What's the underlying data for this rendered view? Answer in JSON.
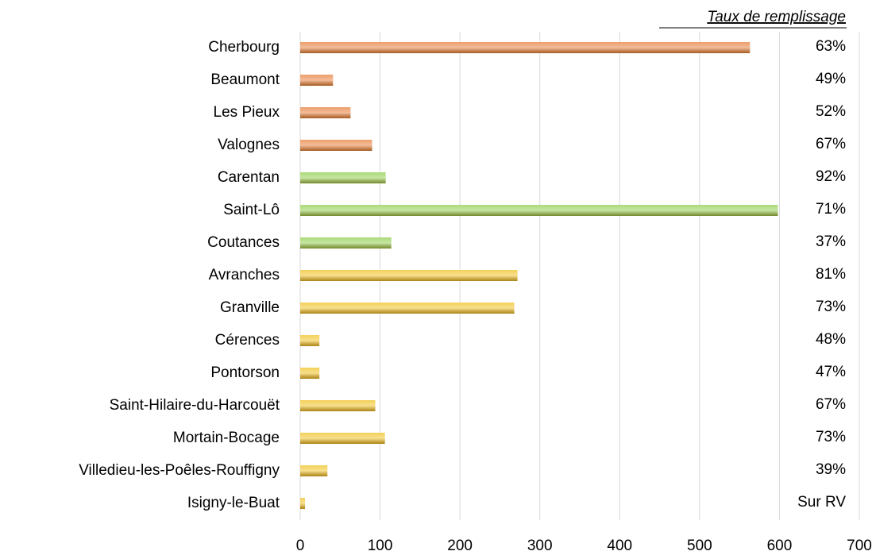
{
  "chart_data": {
    "type": "bar",
    "orientation": "horizontal",
    "categories": [
      "Cherbourg",
      "Beaumont",
      "Les Pieux",
      "Valognes",
      "Carentan",
      "Saint-Lô",
      "Coutances",
      "Avranches",
      "Granville",
      "Cérences",
      "Pontorson",
      "Saint-Hilaire-du-Harcouët",
      "Mortain-Bocage",
      "Villedieu-les-Poêles-Rouffigny",
      "Isigny-le-Buat"
    ],
    "values": [
      563,
      41,
      63,
      90,
      107,
      598,
      114,
      272,
      268,
      24,
      24,
      94,
      106,
      34,
      6
    ],
    "colors": [
      "#e67a34",
      "#e67a34",
      "#e67a34",
      "#e67a34",
      "#8ccc46",
      "#8ccc46",
      "#8ccc46",
      "#f0c01c",
      "#f0c01c",
      "#f0c01c",
      "#f0c01c",
      "#f0c01c",
      "#f0c01c",
      "#f0c01c",
      "#f0c01c"
    ],
    "side_header": "Taux de remplissage",
    "side_labels": [
      "63%",
      "49%",
      "52%",
      "67%",
      "92%",
      "71%",
      "37%",
      "81%",
      "73%",
      "48%",
      "47%",
      "67%",
      "73%",
      "39%",
      "Sur RV"
    ],
    "xlim": [
      0,
      700
    ],
    "xticks": [
      0,
      100,
      200,
      300,
      400,
      500,
      600,
      700
    ],
    "grid": true
  }
}
